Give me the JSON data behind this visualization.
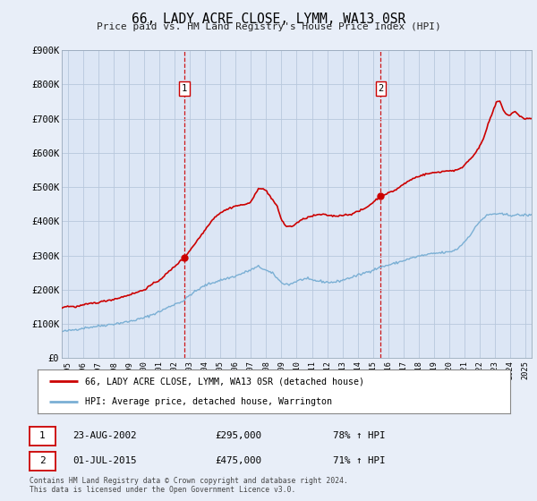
{
  "title": "66, LADY ACRE CLOSE, LYMM, WA13 0SR",
  "subtitle": "Price paid vs. HM Land Registry's House Price Index (HPI)",
  "ylim": [
    0,
    900000
  ],
  "yticks": [
    0,
    100000,
    200000,
    300000,
    400000,
    500000,
    600000,
    700000,
    800000,
    900000
  ],
  "ytick_labels": [
    "£0",
    "£100K",
    "£200K",
    "£300K",
    "£400K",
    "£500K",
    "£600K",
    "£700K",
    "£800K",
    "£900K"
  ],
  "xlim_start": 1994.6,
  "xlim_end": 2025.4,
  "xticks": [
    1995,
    1996,
    1997,
    1998,
    1999,
    2000,
    2001,
    2002,
    2003,
    2004,
    2005,
    2006,
    2007,
    2008,
    2009,
    2010,
    2011,
    2012,
    2013,
    2014,
    2015,
    2016,
    2017,
    2018,
    2019,
    2020,
    2021,
    2022,
    2023,
    2024,
    2025
  ],
  "red_line_color": "#cc0000",
  "blue_line_color": "#7aafd4",
  "sale1_x": 2002.647,
  "sale1_y": 295000,
  "sale1_label": "1",
  "sale1_date": "23-AUG-2002",
  "sale1_price": "£295,000",
  "sale1_hpi": "78% ↑ HPI",
  "sale2_x": 2015.5,
  "sale2_y": 475000,
  "sale2_label": "2",
  "sale2_date": "01-JUL-2015",
  "sale2_price": "£475,000",
  "sale2_hpi": "71% ↑ HPI",
  "legend_label_red": "66, LADY ACRE CLOSE, LYMM, WA13 0SR (detached house)",
  "legend_label_blue": "HPI: Average price, detached house, Warrington",
  "footer_line1": "Contains HM Land Registry data © Crown copyright and database right 2024.",
  "footer_line2": "This data is licensed under the Open Government Licence v3.0.",
  "background_color": "#e8eef8",
  "plot_bg_color": "#dce6f5",
  "grid_color": "#b8c8dc"
}
